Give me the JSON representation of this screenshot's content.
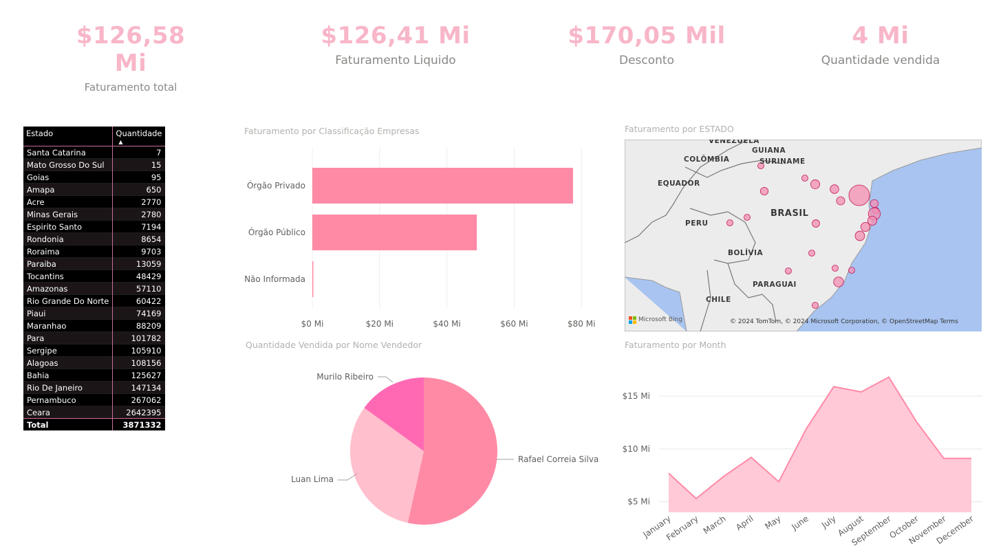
{
  "kpis": [
    {
      "value": "$126,58 Mi",
      "label": "Faturamento total"
    },
    {
      "value": "$126,41 Mi",
      "label": "Faturamento Liquido"
    },
    {
      "value": "$170,05 Mil",
      "label": "Desconto"
    },
    {
      "value": "4 Mi",
      "label": "Quantidade vendida"
    }
  ],
  "table": {
    "headers": [
      "Estado",
      "Quantidade"
    ],
    "rows": [
      [
        "Santa Catarina",
        "7"
      ],
      [
        "Mato Grosso Do Sul",
        "15"
      ],
      [
        "Goias",
        "95"
      ],
      [
        "Amapa",
        "650"
      ],
      [
        "Acre",
        "2770"
      ],
      [
        "Minas Gerais",
        "2780"
      ],
      [
        "Espirito Santo",
        "7194"
      ],
      [
        "Rondonia",
        "8654"
      ],
      [
        "Roraima",
        "9703"
      ],
      [
        "Paraiba",
        "13059"
      ],
      [
        "Tocantins",
        "48429"
      ],
      [
        "Amazonas",
        "57110"
      ],
      [
        "Rio Grande Do Norte",
        "60422"
      ],
      [
        "Piaui",
        "74169"
      ],
      [
        "Maranhao",
        "88209"
      ],
      [
        "Para",
        "101782"
      ],
      [
        "Sergipe",
        "105910"
      ],
      [
        "Alagoas",
        "108156"
      ],
      [
        "Bahia",
        "125627"
      ],
      [
        "Rio De Janeiro",
        "147134"
      ],
      [
        "Pernambuco",
        "267062"
      ],
      [
        "Ceara",
        "2642395"
      ]
    ],
    "total": [
      "Total",
      "3871332"
    ]
  },
  "bar_chart": {
    "title": "Faturamento  por Classificação Empresas",
    "ticks": [
      "$0 Mi",
      "$20 Mi",
      "$40 Mi",
      "$60 Mi",
      "$80 Mi"
    ]
  },
  "pie_chart": {
    "title": "Quantidade Vendida por Nome Vendedor"
  },
  "map": {
    "title": "Faturamento por ESTADO",
    "labels": [
      "VENEZUELA",
      "GUIANA",
      "COLÔMBIA",
      "SURINAME",
      "EQUADOR",
      "BRASIL",
      "PERU",
      "BOLÍVIA",
      "PARAGUAI",
      "CHILE"
    ],
    "logo_text": "Microsoft Bing",
    "copyright": "© 2024 TomTom, © 2024 Microsoft Corporation, © OpenStreetMap  Terms",
    "bubble_color": "#f48fb1"
  },
  "area_chart": {
    "title": "Faturamento por Month",
    "yticks": [
      "$15 Mi",
      "$10 Mi",
      "$5 Mi"
    ]
  },
  "colors": {
    "kpi": "#f8b6c8",
    "bar": "#ff8aa6",
    "pie": [
      "#ff8aa6",
      "#ffbfcc",
      "#ff69b4"
    ],
    "area_fill": "#ffc9d8",
    "area_line": "#ff8aa6"
  },
  "chart_data": [
    {
      "type": "bar",
      "title": "Faturamento  por Classificação Empresas",
      "orientation": "horizontal",
      "categories": [
        "Órgão Privado",
        "Órgão Público",
        "Não Informada"
      ],
      "values": [
        77.5,
        48.9,
        0.2
      ],
      "unit": "Mi",
      "xlim": [
        0,
        82
      ],
      "xticks": [
        0,
        20,
        40,
        60,
        80
      ],
      "grid": true
    },
    {
      "type": "pie",
      "title": "Quantidade Vendida por Nome Vendedor",
      "categories": [
        "Rafael Correia Silva",
        "Luan Lima",
        "Murilo Ribeiro"
      ],
      "values": [
        53.5,
        31.5,
        15.0
      ]
    },
    {
      "type": "area",
      "title": "Faturamento por Month",
      "categories": [
        "January",
        "February",
        "March",
        "April",
        "May",
        "June",
        "July",
        "August",
        "September",
        "October",
        "November",
        "December"
      ],
      "values": [
        7.7,
        5.3,
        7.4,
        9.2,
        6.9,
        11.9,
        15.9,
        15.4,
        16.8,
        12.6,
        9.1,
        9.1
      ],
      "unit": "Mi",
      "ylim": [
        4,
        18
      ],
      "yticks": [
        5,
        10,
        15
      ],
      "grid": true
    }
  ]
}
